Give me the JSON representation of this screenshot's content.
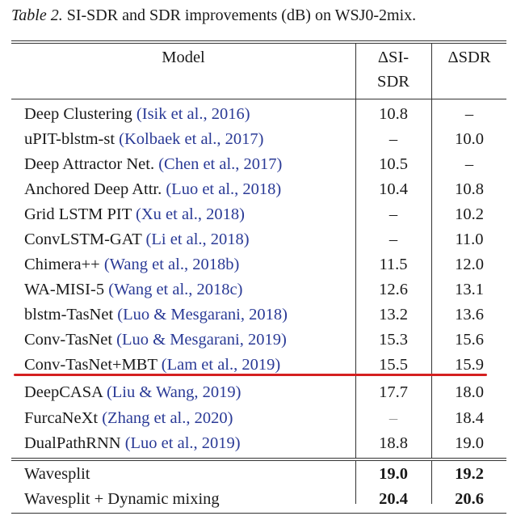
{
  "caption": {
    "lead": "Table 2.",
    "text": " SI-SDR and SDR improvements (dB) on WSJ0-2mix."
  },
  "header": {
    "model": "Model",
    "col_a_line1": "ΔSI-",
    "col_a_line2": "SDR",
    "col_b": "ΔSDR"
  },
  "rows": [
    {
      "model": "Deep Clustering",
      "cite": "(Isik et al., 2016)",
      "a": "10.8",
      "b": "–"
    },
    {
      "model": "uPIT-blstm-st",
      "cite": "(Kolbaek et al., 2017)",
      "a": "–",
      "b": "10.0"
    },
    {
      "model": "Deep Attractor Net.",
      "cite": "(Chen et al., 2017)",
      "a": "10.5",
      "b": "–"
    },
    {
      "model": "Anchored Deep Attr.",
      "cite": "(Luo et al., 2018)",
      "a": "10.4",
      "b": "10.8"
    },
    {
      "model": "Grid LSTM PIT",
      "cite": "(Xu et al., 2018)",
      "a": "–",
      "b": "10.2"
    },
    {
      "model": "ConvLSTM-GAT",
      "cite": "(Li et al., 2018)",
      "a": "–",
      "b": "11.0"
    },
    {
      "model": "Chimera++",
      "cite": "(Wang et al., 2018b)",
      "a": "11.5",
      "b": "12.0"
    },
    {
      "model": "WA-MISI-5",
      "cite": "(Wang et al., 2018c)",
      "a": "12.6",
      "b": "13.1"
    },
    {
      "model": "blstm-TasNet",
      "cite": "(Luo & Mesgarani, 2018)",
      "a": "13.2",
      "b": "13.6"
    },
    {
      "model": "Conv-TasNet",
      "cite": "(Luo & Mesgarani, 2019)",
      "a": "15.3",
      "b": "15.6"
    },
    {
      "model": "Conv-TasNet+MBT",
      "cite": "(Lam et al., 2019)",
      "a": "15.5",
      "b": "15.9"
    },
    {
      "model": "DeepCASA",
      "cite": "(Liu & Wang, 2019)",
      "a": "17.7",
      "b": "18.0"
    },
    {
      "model": "FurcaNeXt",
      "cite": "(Zhang et al., 2020)",
      "a": "–",
      "b": "18.4"
    },
    {
      "model": "DualPathRNN",
      "cite": "(Luo et al., 2019)",
      "a": "18.8",
      "b": "19.0"
    }
  ],
  "final_rows": [
    {
      "model": "Wavesplit",
      "a": "19.0",
      "b": "19.2"
    },
    {
      "model": "Wavesplit + Dynamic mixing",
      "a": "20.4",
      "b": "20.6"
    }
  ],
  "colors": {
    "citation": "#2a3a96",
    "annotation_line": "#d42020"
  }
}
